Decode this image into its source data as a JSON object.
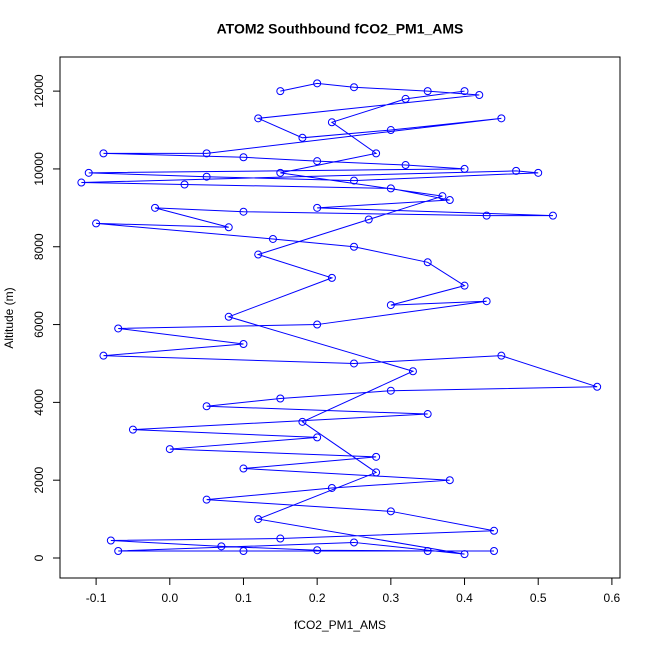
{
  "chart_data": {
    "type": "line",
    "title": "ATOM2 Southbound fCO2_PM1_AMS",
    "x_label": "fCO2_PM1_AMS",
    "y_label": "Altitude (m)",
    "xlim": [
      -0.149,
      0.611
    ],
    "ylim": [
      -514,
      12877
    ],
    "xticks": [
      -0.1,
      {
        "value": 0,
        "label": "0.0"
      },
      0.1,
      0.2,
      0.3,
      0.4,
      0.5,
      0.6
    ],
    "yticks": [
      0,
      2000,
      4000,
      6000,
      8000,
      10000,
      12000
    ],
    "color": "#0000ff",
    "markers": true,
    "x": [
      0.15,
      0.2,
      0.25,
      0.35,
      0.42,
      0.12,
      0.18,
      0.3,
      0.45,
      0.05,
      -0.09,
      0.1,
      0.2,
      0.32,
      0.4,
      -0.11,
      0.05,
      0.25,
      0.5,
      0.47,
      -0.12,
      0.02,
      0.3,
      0.38,
      0.2,
      0.52,
      0.43,
      0.1,
      -0.02,
      0.08,
      -0.1,
      0.14,
      0.25,
      0.35,
      0.4,
      0.3,
      0.43,
      0.2,
      -0.07,
      0.1,
      -0.09,
      0.25,
      0.45,
      0.58,
      0.3,
      0.15,
      0.05,
      0.35,
      -0.05,
      0.2,
      0.0,
      0.28,
      0.1,
      0.38,
      0.22,
      0.05,
      0.3,
      0.44,
      0.15,
      -0.08,
      0.07,
      0.2,
      0.35,
      0.44,
      0.1,
      -0.07,
      0.25,
      0.4,
      0.12,
      0.28,
      0.18,
      0.33,
      0.08,
      0.22,
      0.12,
      0.27,
      0.37,
      0.15,
      0.28,
      0.22,
      0.32,
      0.4
    ],
    "y": [
      12000,
      12200,
      12100,
      12000,
      11900,
      11300,
      10800,
      11000,
      11300,
      10400,
      10400,
      10300,
      10200,
      10100,
      10000,
      9900,
      9800,
      9700,
      9900,
      9950,
      9650,
      9600,
      9500,
      9200,
      9000,
      8800,
      8800,
      8900,
      9000,
      8500,
      8600,
      8200,
      8000,
      7600,
      7000,
      6500,
      6600,
      6000,
      5900,
      5500,
      5200,
      5000,
      5200,
      4400,
      4300,
      4100,
      3900,
      3700,
      3300,
      3100,
      2800,
      2600,
      2300,
      2000,
      1800,
      1500,
      1200,
      700,
      500,
      450,
      300,
      200,
      180,
      180,
      180,
      180,
      400,
      100,
      1000,
      2200,
      3500,
      4800,
      6200,
      7200,
      7800,
      8700,
      9300,
      9900,
      10400,
      11200,
      11800,
      12000
    ]
  }
}
